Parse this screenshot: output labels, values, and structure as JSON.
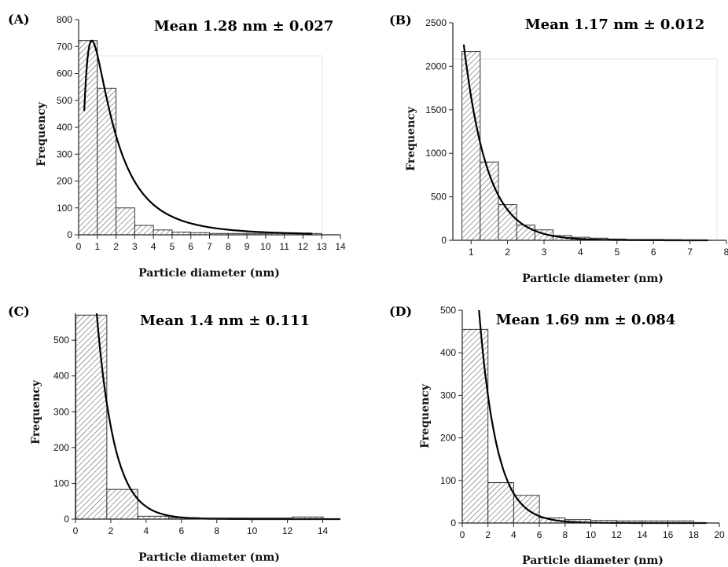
{
  "chart_data": [
    {
      "type": "bar",
      "panel_label": "(A)",
      "annotation": "Mean 1.28 nm ± 0.027",
      "xlabel": "Particle diameter (nm)",
      "ylabel": "Frequency",
      "xlim": [
        0,
        14
      ],
      "ylim": [
        0,
        800
      ],
      "xticks": [
        0,
        1,
        2,
        3,
        4,
        5,
        6,
        7,
        8,
        9,
        10,
        11,
        12,
        13,
        14
      ],
      "yticks": [
        0,
        100,
        200,
        300,
        400,
        500,
        600,
        700,
        800
      ],
      "bin_width": 1,
      "bins": [
        [
          0.5,
          722
        ],
        [
          1.5,
          545
        ],
        [
          2.5,
          100
        ],
        [
          3.5,
          35
        ],
        [
          4.5,
          18
        ],
        [
          5.5,
          10
        ],
        [
          6.5,
          8
        ],
        [
          7.5,
          5
        ],
        [
          8.5,
          5
        ],
        [
          9.5,
          5
        ],
        [
          10.5,
          5
        ],
        [
          11.5,
          5
        ],
        [
          12.5,
          5
        ]
      ],
      "fit": {
        "type": "lognormal",
        "A": 722,
        "mu": -0.35,
        "sigma": 0.9,
        "x_range": [
          0.3,
          12.5
        ]
      }
    },
    {
      "type": "bar",
      "panel_label": "(B)",
      "annotation": "Mean 1.17 nm ± 0.012",
      "xlabel": "Particle diameter (nm)",
      "ylabel": "Frequency",
      "xlim": [
        0.5,
        8
      ],
      "ylim": [
        0,
        2500
      ],
      "xticks": [
        1,
        2,
        3,
        4,
        5,
        6,
        7,
        8
      ],
      "yticks": [
        0,
        500,
        1000,
        1500,
        2000,
        2500
      ],
      "bin_width": 0.5,
      "bins": [
        [
          1.0,
          2170
        ],
        [
          1.5,
          900
        ],
        [
          2.0,
          410
        ],
        [
          2.5,
          175
        ],
        [
          3.0,
          120
        ],
        [
          3.5,
          55
        ],
        [
          4.0,
          35
        ],
        [
          4.5,
          25
        ],
        [
          5.0,
          15
        ],
        [
          5.5,
          10
        ],
        [
          6.0,
          10
        ],
        [
          6.5,
          8
        ],
        [
          7.0,
          5
        ]
      ],
      "fit": {
        "type": "exponential",
        "A": 2250,
        "x0": 0.8,
        "k": 1.55,
        "x_range": [
          0.8,
          7.5
        ]
      }
    },
    {
      "type": "bar",
      "panel_label": "(C)",
      "annotation": "Mean 1.4 nm ± 0.111",
      "xlabel": "Particle diameter (nm)",
      "ylabel": "Frequency",
      "xlim": [
        0,
        15
      ],
      "ylim": [
        0,
        575
      ],
      "xticks": [
        0,
        2,
        4,
        6,
        8,
        10,
        12,
        14
      ],
      "yticks": [
        0,
        100,
        200,
        300,
        400,
        500
      ],
      "bin_width": 1.75,
      "bins": [
        [
          0.9,
          570
        ],
        [
          2.65,
          83
        ],
        [
          4.4,
          8
        ],
        [
          6.15,
          4
        ],
        [
          7.9,
          3
        ],
        [
          9.65,
          3
        ],
        [
          11.4,
          3
        ],
        [
          13.15,
          6
        ]
      ],
      "fit": {
        "type": "exponential",
        "A": 575,
        "x0": 1.2,
        "k": 1.0,
        "x_range": [
          1.2,
          15
        ]
      }
    },
    {
      "type": "bar",
      "panel_label": "(D)",
      "annotation": "Mean 1.69 nm ± 0.084",
      "xlabel": "Particle diameter (nm)",
      "ylabel": "Frequency",
      "xlim": [
        0,
        20
      ],
      "ylim": [
        0,
        500
      ],
      "xticks": [
        0,
        2,
        4,
        6,
        8,
        10,
        12,
        14,
        16,
        18,
        20
      ],
      "yticks": [
        0,
        100,
        200,
        300,
        400,
        500
      ],
      "bin_width": 2,
      "bins": [
        [
          1,
          455
        ],
        [
          3,
          95
        ],
        [
          5,
          65
        ],
        [
          7,
          12
        ],
        [
          9,
          8
        ],
        [
          11,
          6
        ],
        [
          13,
          5
        ],
        [
          15,
          5
        ],
        [
          17,
          5
        ]
      ],
      "fit": {
        "type": "exponential",
        "A": 500,
        "x0": 1.3,
        "k": 0.73,
        "x_range": [
          1.3,
          19
        ]
      }
    }
  ]
}
